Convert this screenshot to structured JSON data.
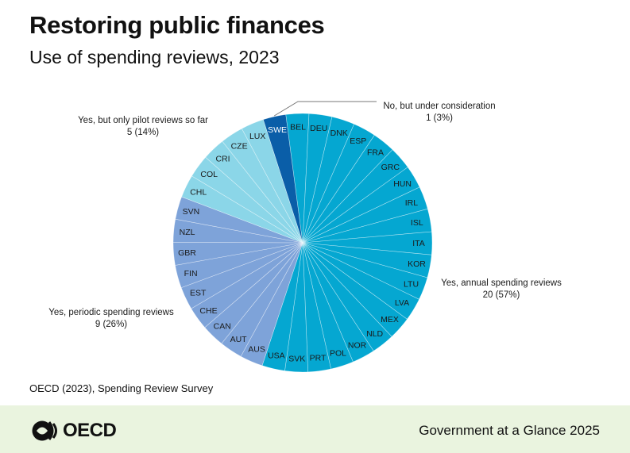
{
  "header": {
    "title": "Restoring public finances",
    "subtitle": "Use of spending reviews, 2023"
  },
  "chart_data": {
    "type": "pie",
    "title": "Restoring public finances",
    "subtitle": "Use of spending reviews, 2023",
    "start_slice": "SWE",
    "direction": "clockwise",
    "slices": [
      {
        "label": "SWE",
        "category": "no_consideration"
      },
      {
        "label": "BEL",
        "category": "annual"
      },
      {
        "label": "DEU",
        "category": "annual"
      },
      {
        "label": "DNK",
        "category": "annual"
      },
      {
        "label": "ESP",
        "category": "annual"
      },
      {
        "label": "FRA",
        "category": "annual"
      },
      {
        "label": "GRC",
        "category": "annual"
      },
      {
        "label": "HUN",
        "category": "annual"
      },
      {
        "label": "IRL",
        "category": "annual"
      },
      {
        "label": "ISL",
        "category": "annual"
      },
      {
        "label": "ITA",
        "category": "annual"
      },
      {
        "label": "KOR",
        "category": "annual"
      },
      {
        "label": "LTU",
        "category": "annual"
      },
      {
        "label": "LVA",
        "category": "annual"
      },
      {
        "label": "MEX",
        "category": "annual"
      },
      {
        "label": "NLD",
        "category": "annual"
      },
      {
        "label": "NOR",
        "category": "annual"
      },
      {
        "label": "POL",
        "category": "annual"
      },
      {
        "label": "PRT",
        "category": "annual"
      },
      {
        "label": "SVK",
        "category": "annual"
      },
      {
        "label": "USA",
        "category": "annual"
      },
      {
        "label": "AUS",
        "category": "periodic"
      },
      {
        "label": "AUT",
        "category": "periodic"
      },
      {
        "label": "CAN",
        "category": "periodic"
      },
      {
        "label": "CHE",
        "category": "periodic"
      },
      {
        "label": "EST",
        "category": "periodic"
      },
      {
        "label": "FIN",
        "category": "periodic"
      },
      {
        "label": "GBR",
        "category": "periodic"
      },
      {
        "label": "NZL",
        "category": "periodic"
      },
      {
        "label": "SVN",
        "category": "periodic"
      },
      {
        "label": "CHL",
        "category": "pilot"
      },
      {
        "label": "COL",
        "category": "pilot"
      },
      {
        "label": "CRI",
        "category": "pilot"
      },
      {
        "label": "CZE",
        "category": "pilot"
      },
      {
        "label": "LUX",
        "category": "pilot"
      }
    ],
    "categories": [
      {
        "key": "no_consideration",
        "line1": "No, but under consideration",
        "line2": "1 (3%)",
        "count": 1,
        "percent": 3,
        "color": "#0a5ea8"
      },
      {
        "key": "annual",
        "line1": "Yes, annual spending reviews",
        "line2": "20 (57%)",
        "count": 20,
        "percent": 57,
        "color": "#05a7d1"
      },
      {
        "key": "periodic",
        "line1": "Yes, periodic spending reviews",
        "line2": "9 (26%)",
        "count": 9,
        "percent": 26,
        "color": "#7ea3d9"
      },
      {
        "key": "pilot",
        "line1": "Yes, but only pilot reviews so far",
        "line2": "5 (14%)",
        "count": 5,
        "percent": 14,
        "color": "#8bd6e8"
      }
    ],
    "legend_placement": "labels-around-pie"
  },
  "source": "OECD (2023), Spending Review Survey",
  "footer": {
    "logo_text": "OECD",
    "publication": "Government at a Glance 2025",
    "background_color": "#eaf4df"
  }
}
